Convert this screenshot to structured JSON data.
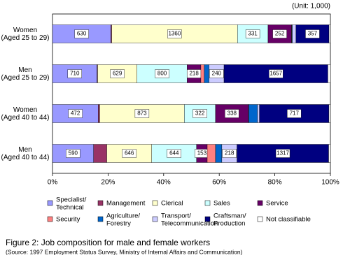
{
  "chart_data": {
    "type": "stacked_percent_barh",
    "unit_note": "(Unit: 1,000)",
    "categories": [
      "Women\n(Aged 25 to 29)",
      "Men\n(Aged 25 to 29)",
      "Women\n(Aged 40 to 44)",
      "Men\n(Aged 40 to 44)"
    ],
    "series": [
      {
        "name": "Specialist/\nTechnical",
        "color": "#9999ff",
        "data_labels": true,
        "values": [
          630,
          710,
          472,
          590
        ]
      },
      {
        "name": "Management",
        "color": "#993366",
        "data_labels": false,
        "values": [
          10,
          10,
          15,
          190
        ]
      },
      {
        "name": "Clerical",
        "color": "#ffffcc",
        "data_labels": true,
        "values": [
          1360,
          629,
          873,
          646
        ]
      },
      {
        "name": "Sales",
        "color": "#ccffff",
        "data_labels": true,
        "values": [
          331,
          800,
          322,
          644
        ]
      },
      {
        "name": "Service",
        "color": "#660066",
        "data_labels": true,
        "values": [
          252,
          218,
          338,
          153
        ]
      },
      {
        "name": "Security",
        "color": "#ff8080",
        "data_labels": false,
        "values": [
          5,
          55,
          5,
          120
        ]
      },
      {
        "name": "Agriculture/\nForestry",
        "color": "#0066cc",
        "data_labels": false,
        "values": [
          5,
          75,
          90,
          90
        ]
      },
      {
        "name": "Transport/\nTelecommunication",
        "color": "#ccccff",
        "data_labels": true,
        "values": [
          40,
          240,
          20,
          218
        ]
      },
      {
        "name": "Craftsman/\nProduction",
        "color": "#000080",
        "data_labels": true,
        "values": [
          357,
          1657,
          717,
          1317
        ]
      },
      {
        "name": "Not classifiable",
        "color": "#ffffff",
        "data_labels": false,
        "values": [
          15,
          40,
          15,
          25
        ]
      }
    ],
    "xlim": [
      0,
      100
    ],
    "xticks": [
      {
        "value": 0,
        "label": "0%"
      },
      {
        "value": 20,
        "label": "20%"
      },
      {
        "value": 40,
        "label": "40%"
      },
      {
        "value": 60,
        "label": "60%"
      },
      {
        "value": 80,
        "label": "80%"
      },
      {
        "value": 100,
        "label": "100%"
      }
    ],
    "caption": "Figure 2: Job composition for male and female workers",
    "source": "(Source: 1997 Employment Status Survey, Ministry of Internal Affairs and Communication)"
  }
}
